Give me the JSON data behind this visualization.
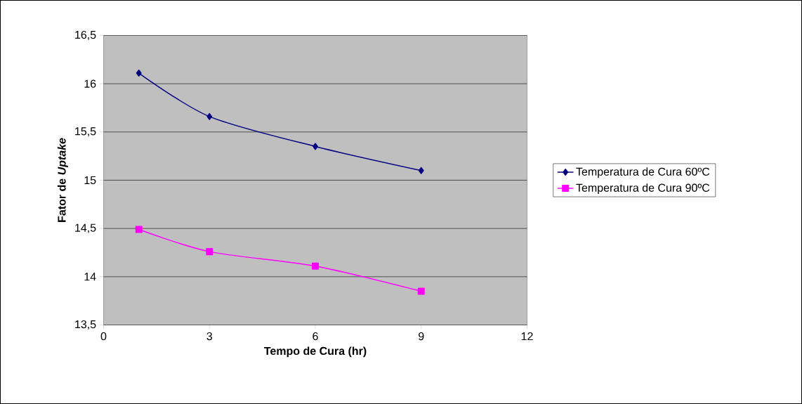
{
  "chart_data": {
    "type": "line",
    "xlabel": "Tempo de Cura (hr)",
    "ylabel": "Fator de *Uptake*",
    "x": [
      1,
      3,
      6,
      9
    ],
    "series": [
      {
        "name": "Temperatura de Cura 60ºC",
        "color": "#000080",
        "marker": "diamond",
        "values": [
          16.11,
          15.66,
          15.35,
          15.1
        ]
      },
      {
        "name": "Temperatura de Cura 90ºC",
        "color": "#ff00ff",
        "marker": "square",
        "values": [
          14.49,
          14.26,
          14.11,
          13.85
        ]
      }
    ],
    "xlim": [
      0,
      12
    ],
    "xticks": [
      0,
      3,
      6,
      9,
      12
    ],
    "ylim": [
      13.5,
      16.5
    ],
    "yticks": [
      {
        "value": 13.5,
        "label": "13,5"
      },
      {
        "value": 14,
        "label": "14"
      },
      {
        "value": 14.5,
        "label": "14,5"
      },
      {
        "value": 15,
        "label": "15"
      },
      {
        "value": 15.5,
        "label": "15,5"
      },
      {
        "value": 16,
        "label": "16"
      },
      {
        "value": 16.5,
        "label": "16,5"
      }
    ],
    "grid": "y",
    "legend": "right"
  }
}
